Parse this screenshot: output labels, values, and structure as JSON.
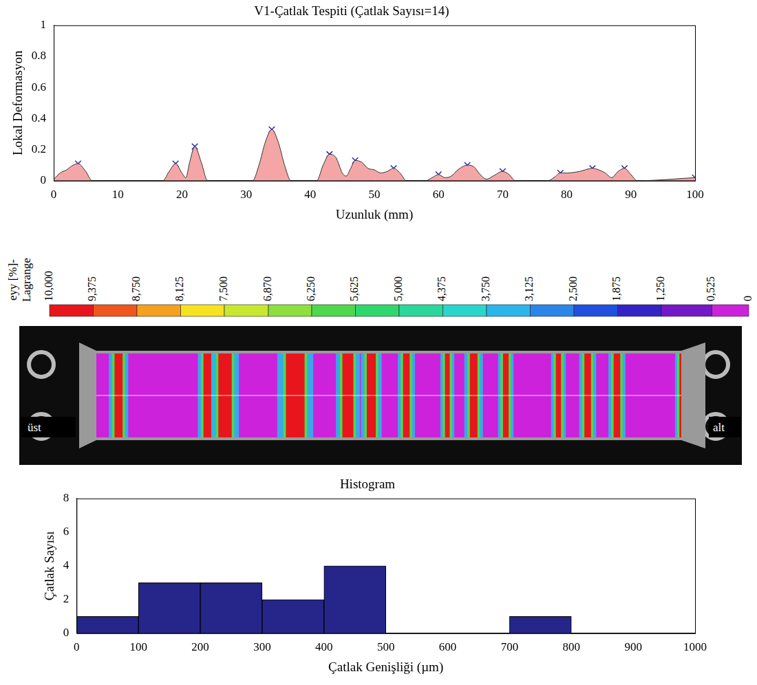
{
  "chart_data": [
    {
      "type": "line",
      "title": "V1-Çatlak Tespiti (Çatlak Sayısı=14)",
      "x_label": "Uzunluk (mm)",
      "y_label": "Lokal Deformasyon",
      "xlim": [
        0,
        100
      ],
      "xticks": [
        0,
        10,
        20,
        30,
        40,
        50,
        60,
        70,
        80,
        90,
        100
      ],
      "ylim": [
        0,
        1
      ],
      "yticks": [
        0,
        0.2,
        0.4,
        0.6,
        0.8,
        1
      ],
      "grid": false,
      "series": [
        {
          "type": "area",
          "color": "#f4a6a6",
          "x": [
            0,
            1,
            2,
            3,
            3.8,
            5,
            6,
            17,
            18,
            19,
            20,
            20.6,
            21.2,
            22,
            23,
            24,
            31,
            32,
            33,
            34,
            35,
            36,
            37,
            41,
            42,
            43,
            44,
            45,
            45.6,
            46.3,
            47,
            48,
            49,
            50,
            51,
            52,
            53,
            54,
            55,
            58,
            59,
            60,
            61,
            62,
            63,
            64.5,
            65.5,
            66.5,
            67.5,
            68.5,
            70,
            71,
            72,
            77,
            78,
            79,
            80,
            82,
            84,
            85,
            86,
            87,
            88,
            89,
            90,
            91,
            100
          ],
          "values": [
            0.01,
            0.05,
            0.07,
            0.1,
            0.11,
            0.06,
            0,
            0,
            0.06,
            0.11,
            0.05,
            0.02,
            0.12,
            0.22,
            0.12,
            0,
            0,
            0.1,
            0.25,
            0.33,
            0.25,
            0.1,
            0,
            0,
            0.1,
            0.17,
            0.15,
            0.05,
            0.03,
            0.08,
            0.13,
            0.12,
            0.08,
            0.07,
            0.05,
            0.06,
            0.08,
            0.05,
            0,
            0,
            0.02,
            0.04,
            0.02,
            0.03,
            0.07,
            0.1,
            0.09,
            0.04,
            0.01,
            0.03,
            0.06,
            0.04,
            0,
            0,
            0.02,
            0.05,
            0.05,
            0.06,
            0.08,
            0.07,
            0.05,
            0.02,
            0.06,
            0.08,
            0.04,
            0,
            0.02
          ]
        },
        {
          "type": "scatter",
          "marker": "x",
          "color": "#2626b8",
          "x": [
            3.8,
            19,
            22,
            34,
            43,
            47,
            53,
            60,
            64.5,
            70,
            79,
            84,
            89,
            100
          ],
          "values": [
            0.11,
            0.11,
            0.22,
            0.33,
            0.17,
            0.13,
            0.08,
            0.04,
            0.1,
            0.06,
            0.05,
            0.08,
            0.08,
            0.02
          ]
        }
      ]
    },
    {
      "type": "histogram",
      "title": "Histogram",
      "x_label": "Çatlak Genişliği (µm)",
      "y_label": "Çatlak Sayısı",
      "bins": [
        0,
        100,
        200,
        300,
        400,
        500,
        600,
        700,
        800,
        900,
        1000
      ],
      "values": [
        1,
        3,
        3,
        2,
        4,
        0,
        0,
        1,
        0,
        0
      ],
      "color": "#25258a",
      "xlim": [
        0,
        1000
      ],
      "xticks": [
        0,
        100,
        200,
        300,
        400,
        500,
        600,
        700,
        800,
        900,
        1000
      ],
      "ylim": [
        0,
        8
      ],
      "yticks": [
        0,
        2,
        4,
        6,
        8
      ],
      "grid": false
    }
  ],
  "color_bar": {
    "title": "eyy [%]-\nLagrange",
    "range": [
      0,
      10
    ],
    "ticks": [
      {
        "value": 10,
        "label": "10,000"
      },
      {
        "value": 9.375,
        "label": "9,375"
      },
      {
        "value": 8.75,
        "label": "8,750"
      },
      {
        "value": 8.125,
        "label": "8,125"
      },
      {
        "value": 7.5,
        "label": "7,500"
      },
      {
        "value": 6.87,
        "label": "6,870"
      },
      {
        "value": 6.25,
        "label": "6,250"
      },
      {
        "value": 5.625,
        "label": "5,625"
      },
      {
        "value": 5,
        "label": "5,000"
      },
      {
        "value": 4.375,
        "label": "4,375"
      },
      {
        "value": 3.75,
        "label": "3,750"
      },
      {
        "value": 3.125,
        "label": "3,125"
      },
      {
        "value": 2.5,
        "label": "2,500"
      },
      {
        "value": 1.875,
        "label": "1,875"
      },
      {
        "value": 1.25,
        "label": "1,250"
      },
      {
        "value": 0.525,
        "label": "0,525"
      },
      0
    ],
    "colors": [
      "#e8161c",
      "#f0561c",
      "#f5a01e",
      "#f6e21e",
      "#c8e830",
      "#8ee03c",
      "#4ed84c",
      "#2ed86c",
      "#2ad89c",
      "#2ad6cc",
      "#2ab6ea",
      "#2a86e8",
      "#2050e0",
      "#3424c6",
      "#7418c8",
      "#cc22dc"
    ]
  },
  "specimen": {
    "labels": [
      "üst",
      "alt"
    ]
  }
}
